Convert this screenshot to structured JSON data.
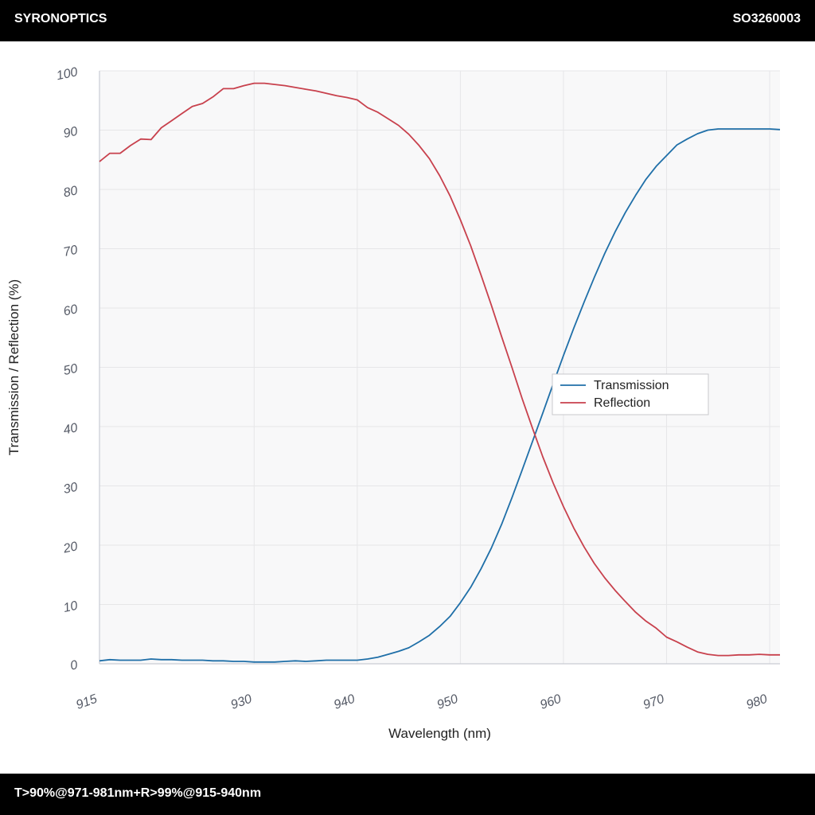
{
  "header": {
    "brand": "SYRONOPTICS",
    "part_number": "SO3260003"
  },
  "footer": {
    "spec": "T>90%@971-981nm+R>99%@915-940nm"
  },
  "colors": {
    "transmission": "#1f6fa8",
    "reflection": "#c8414d",
    "plot_bg": "#f8f8f9",
    "grid": "#e6e6e8"
  },
  "chart_data": {
    "type": "line",
    "xlabel": "Wavelength (nm)",
    "ylabel": "Transmission / Reflection (%)",
    "xlim": [
      915,
      981
    ],
    "ylim": [
      0,
      100
    ],
    "x_ticks": [
      915,
      930,
      940,
      950,
      960,
      970,
      980
    ],
    "y_ticks": [
      0,
      10,
      20,
      30,
      40,
      50,
      60,
      70,
      80,
      90,
      100
    ],
    "grid": true,
    "legend_position": "center-right",
    "series": [
      {
        "name": "Transmission",
        "x": [
          915,
          916,
          917,
          918,
          919,
          920,
          921,
          922,
          923,
          924,
          925,
          926,
          927,
          928,
          929,
          930,
          931,
          932,
          933,
          934,
          935,
          936,
          937,
          938,
          939,
          940,
          941,
          942,
          943,
          944,
          945,
          946,
          947,
          948,
          949,
          950,
          951,
          952,
          953,
          954,
          955,
          956,
          957,
          958,
          959,
          960,
          961,
          962,
          963,
          964,
          965,
          966,
          967,
          968,
          969,
          970,
          971,
          972,
          973,
          974,
          975,
          976,
          977,
          978,
          979,
          980,
          981
        ],
        "values": [
          0.5,
          0.7,
          0.6,
          0.6,
          0.6,
          0.8,
          0.7,
          0.7,
          0.6,
          0.6,
          0.6,
          0.5,
          0.5,
          0.4,
          0.4,
          0.3,
          0.3,
          0.3,
          0.4,
          0.5,
          0.4,
          0.5,
          0.6,
          0.6,
          0.6,
          0.6,
          0.8,
          1.1,
          1.6,
          2.1,
          2.7,
          3.7,
          4.8,
          6.3,
          8.0,
          10.3,
          12.9,
          16.0,
          19.5,
          23.5,
          28.0,
          32.7,
          37.5,
          42.3,
          47.2,
          52.0,
          56.6,
          61.0,
          65.2,
          69.2,
          72.8,
          76.1,
          79.0,
          81.7,
          83.9,
          85.7,
          87.5,
          88.5,
          89.4,
          90.0,
          90.2,
          90.2,
          90.2,
          90.2,
          90.2,
          90.2,
          90.1
        ]
      },
      {
        "name": "Reflection",
        "x": [
          915,
          916,
          917,
          918,
          919,
          920,
          921,
          922,
          923,
          924,
          925,
          926,
          927,
          928,
          929,
          930,
          931,
          932,
          933,
          934,
          935,
          936,
          937,
          938,
          939,
          940,
          941,
          942,
          943,
          944,
          945,
          946,
          947,
          948,
          949,
          950,
          951,
          952,
          953,
          954,
          955,
          956,
          957,
          958,
          959,
          960,
          961,
          962,
          963,
          964,
          965,
          966,
          967,
          968,
          969,
          970,
          971,
          972,
          973,
          974,
          975,
          976,
          977,
          978,
          979,
          980,
          981
        ],
        "values": [
          84.7,
          86.1,
          86.1,
          87.4,
          88.5,
          88.4,
          90.4,
          91.6,
          92.8,
          94.0,
          94.5,
          95.6,
          97.0,
          97.0,
          97.5,
          97.9,
          97.9,
          97.7,
          97.5,
          97.2,
          96.9,
          96.6,
          96.2,
          95.8,
          95.5,
          95.1,
          93.8,
          93.0,
          91.9,
          90.8,
          89.3,
          87.4,
          85.2,
          82.3,
          78.9,
          74.9,
          70.5,
          65.6,
          60.5,
          55.2,
          50.0,
          44.7,
          39.7,
          34.9,
          30.5,
          26.5,
          22.9,
          19.7,
          16.9,
          14.5,
          12.4,
          10.5,
          8.7,
          7.2,
          6.0,
          4.5,
          3.7,
          2.8,
          2.0,
          1.6,
          1.4,
          1.4,
          1.5,
          1.5,
          1.6,
          1.5,
          1.5
        ]
      }
    ]
  }
}
